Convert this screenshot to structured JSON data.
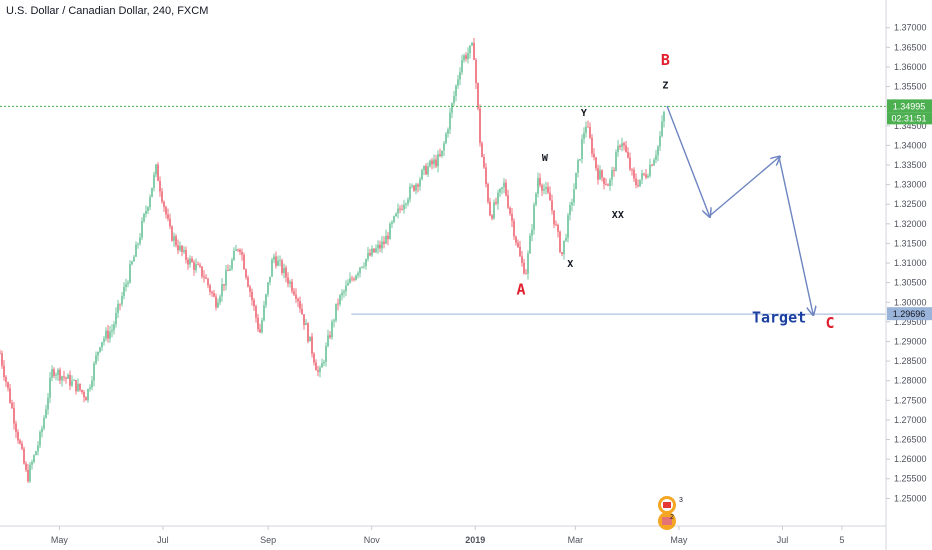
{
  "header": {
    "title": "U.S. Dollar / Canadian Dollar, 240, FXCM"
  },
  "price_tags": {
    "current": "1.34995",
    "countdown": "02:31:51",
    "target": "1.29696"
  },
  "colors": {
    "up": "#53b987",
    "down": "#eb4d5c",
    "price_line": "#4caf50",
    "target_line": "#9ab3d8",
    "projection": "#6d84c0",
    "annotation_red": "#e0202f",
    "annotation_black": "#131722",
    "target_text": "#1a3fa0"
  },
  "chart_data": {
    "type": "candlestick",
    "symbol": "USDCAD",
    "timeframe": "240",
    "x_tick_labels": [
      "May",
      "Jul",
      "Sep",
      "Nov",
      "2019",
      "Mar",
      "May",
      "Jul",
      "5"
    ],
    "y_tick_labels": [
      "1.37000",
      "1.36500",
      "1.36000",
      "1.35500",
      "1.35000",
      "1.34500",
      "1.34000",
      "1.33500",
      "1.33000",
      "1.32500",
      "1.32000",
      "1.31500",
      "1.31000",
      "1.30500",
      "1.30000",
      "1.29500",
      "1.29000",
      "1.28500",
      "1.28000",
      "1.27500",
      "1.27000",
      "1.26500",
      "1.26000",
      "1.25500",
      "1.25000"
    ],
    "ylim": [
      1.2455,
      1.3735
    ],
    "price_path": [
      {
        "date": "2018-03-27",
        "price": 1.287
      },
      {
        "date": "2018-04-12",
        "price": 1.255
      },
      {
        "date": "2018-04-20",
        "price": 1.266
      },
      {
        "date": "2018-04-27",
        "price": 1.283
      },
      {
        "date": "2018-05-10",
        "price": 1.279
      },
      {
        "date": "2018-05-17",
        "price": 1.276
      },
      {
        "date": "2018-05-25",
        "price": 1.29
      },
      {
        "date": "2018-06-01",
        "price": 1.293
      },
      {
        "date": "2018-06-15",
        "price": 1.313
      },
      {
        "date": "2018-06-27",
        "price": 1.334
      },
      {
        "date": "2018-07-05",
        "price": 1.318
      },
      {
        "date": "2018-07-13",
        "price": 1.312
      },
      {
        "date": "2018-07-25",
        "price": 1.307
      },
      {
        "date": "2018-08-01",
        "price": 1.3
      },
      {
        "date": "2018-08-15",
        "price": 1.315
      },
      {
        "date": "2018-08-27",
        "price": 1.292
      },
      {
        "date": "2018-09-04",
        "price": 1.312
      },
      {
        "date": "2018-09-18",
        "price": 1.302
      },
      {
        "date": "2018-10-01",
        "price": 1.281
      },
      {
        "date": "2018-10-12",
        "price": 1.3
      },
      {
        "date": "2018-10-26",
        "price": 1.31
      },
      {
        "date": "2018-11-08",
        "price": 1.315
      },
      {
        "date": "2018-11-20",
        "price": 1.326
      },
      {
        "date": "2018-12-03",
        "price": 1.334
      },
      {
        "date": "2018-12-12",
        "price": 1.337
      },
      {
        "date": "2018-12-24",
        "price": 1.362
      },
      {
        "date": "2018-12-31",
        "price": 1.365
      },
      {
        "date": "2019-01-04",
        "price": 1.34
      },
      {
        "date": "2019-01-10",
        "price": 1.322
      },
      {
        "date": "2019-01-18",
        "price": 1.33
      },
      {
        "date": "2019-01-28",
        "price": 1.31
      },
      {
        "date": "2019-01-31",
        "price": 1.308
      },
      {
        "date": "2019-02-07",
        "price": 1.332
      },
      {
        "date": "2019-02-14",
        "price": 1.326
      },
      {
        "date": "2019-02-21",
        "price": 1.312
      },
      {
        "date": "2019-03-01",
        "price": 1.331
      },
      {
        "date": "2019-03-07",
        "price": 1.346
      },
      {
        "date": "2019-03-14",
        "price": 1.333
      },
      {
        "date": "2019-03-21",
        "price": 1.33
      },
      {
        "date": "2019-03-28",
        "price": 1.342
      },
      {
        "date": "2019-04-05",
        "price": 1.33
      },
      {
        "date": "2019-04-12",
        "price": 1.333
      },
      {
        "date": "2019-04-19",
        "price": 1.34
      },
      {
        "date": "2019-04-23",
        "price": 1.35
      }
    ],
    "horizontal_lines": [
      {
        "name": "current price",
        "price": 1.34995
      },
      {
        "name": "target",
        "price": 1.29696
      }
    ],
    "projection_path": [
      {
        "date": "2019-04-24",
        "price": 1.35
      },
      {
        "date": "2019-05-19",
        "price": 1.322
      },
      {
        "date": "2019-06-29",
        "price": 1.337
      },
      {
        "date": "2019-07-19",
        "price": 1.297
      }
    ],
    "annotations": [
      {
        "text": "A",
        "date": "2019-01-28",
        "price": 1.302,
        "color": "red",
        "size": "large"
      },
      {
        "text": "W",
        "date": "2019-02-11",
        "price": 1.336,
        "color": "black",
        "size": "small"
      },
      {
        "text": "X",
        "date": "2019-02-26",
        "price": 1.309,
        "color": "black",
        "size": "small"
      },
      {
        "text": "Y",
        "date": "2019-03-06",
        "price": 1.3475,
        "color": "black",
        "size": "small"
      },
      {
        "text": "XX",
        "date": "2019-03-26",
        "price": 1.3215,
        "color": "black",
        "size": "small"
      },
      {
        "text": "B",
        "date": "2019-04-23",
        "price": 1.3605,
        "color": "red",
        "size": "large"
      },
      {
        "text": "Z",
        "date": "2019-04-23",
        "price": 1.3545,
        "color": "black",
        "size": "small"
      },
      {
        "text": "Target",
        "date": "2019-06-29",
        "price": 1.2948,
        "color": "blue",
        "size": "large"
      },
      {
        "text": "C",
        "date": "2019-07-29",
        "price": 1.2934,
        "color": "red",
        "size": "large"
      }
    ],
    "grid": false
  }
}
